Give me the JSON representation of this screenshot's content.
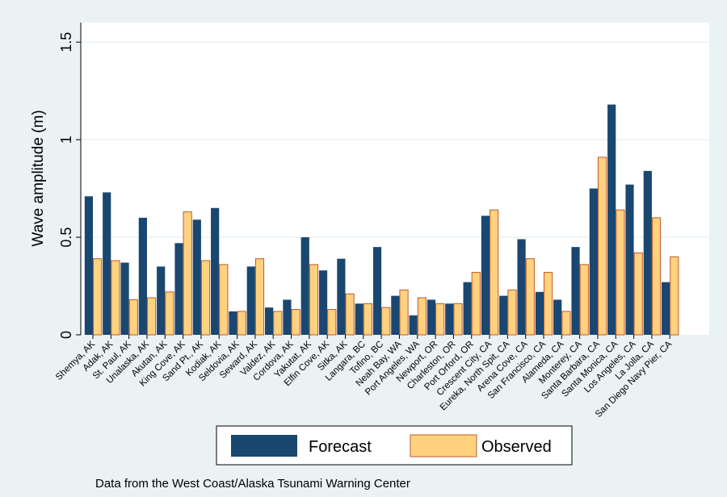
{
  "chart_data": {
    "type": "bar",
    "ylabel": "Wave amplitude (m)",
    "ylim": [
      0,
      1.6
    ],
    "yticks": [
      {
        "value": 0,
        "label": "0"
      },
      {
        "value": 0.5,
        "label": "0.5"
      },
      {
        "value": 1,
        "label": "1"
      },
      {
        "value": 1.5,
        "label": "1.5"
      }
    ],
    "grid": true,
    "legend_position": "bottom",
    "categories": [
      "Shemya, AK",
      "Adak, AK",
      "St. Paul, AK",
      "Unalaska, AK",
      "Akutan, AK",
      "King Cove, AK",
      "Sand Pt., AK",
      "Kodiak, AK",
      "Seldovia, AK",
      "Seward, AK",
      "Valdez, AK",
      "Cordova, AK",
      "Yakutat, AK",
      "Elfin Cove, AK",
      "Sitka, AK",
      "Langara, BC",
      "Tofino, BC",
      "Neah Bay, WA",
      "Port Angeles, WA",
      "Newport, OR",
      "Charleston, OR",
      "Port Orford, OR",
      "Crescent City, CA",
      "Eureka, North Spit, CA",
      "Arena Cove, CA",
      "San Francisco, CA",
      "Alameda, CA",
      "Monterey, CA",
      "Santa Barbara, CA",
      "Santa Monica, CA",
      "Los Angeles, CA",
      "La Jolla, CA",
      "San Diego Navy Pier, CA"
    ],
    "series": [
      {
        "name": "Forecast",
        "color": "#1a476f",
        "values": [
          0.71,
          0.73,
          0.37,
          0.6,
          0.35,
          0.47,
          0.59,
          0.65,
          0.12,
          0.35,
          0.14,
          0.18,
          0.5,
          0.33,
          0.39,
          0.16,
          0.45,
          0.2,
          0.1,
          0.18,
          0.16,
          0.27,
          0.61,
          0.2,
          0.49,
          0.22,
          0.18,
          0.45,
          0.75,
          1.18,
          0.77,
          0.84,
          0.27
        ]
      },
      {
        "name": "Observed",
        "color": "#ffd27f",
        "stroke": "#c0582a",
        "values": [
          0.39,
          0.38,
          0.18,
          0.19,
          0.22,
          0.63,
          0.38,
          0.36,
          0.12,
          0.39,
          0.12,
          0.13,
          0.36,
          0.13,
          0.21,
          0.16,
          0.14,
          0.23,
          0.19,
          0.16,
          0.16,
          0.32,
          0.64,
          0.23,
          0.39,
          0.32,
          0.12,
          0.36,
          0.91,
          0.64,
          0.42,
          0.6,
          0.4
        ]
      }
    ]
  },
  "note": "Data from the West Coast/Alaska Tsunami Warning Center",
  "colors": {
    "outer_background": "#eaf2f3",
    "plot_background": "#ffffff",
    "grid": "#eaf2f3"
  }
}
